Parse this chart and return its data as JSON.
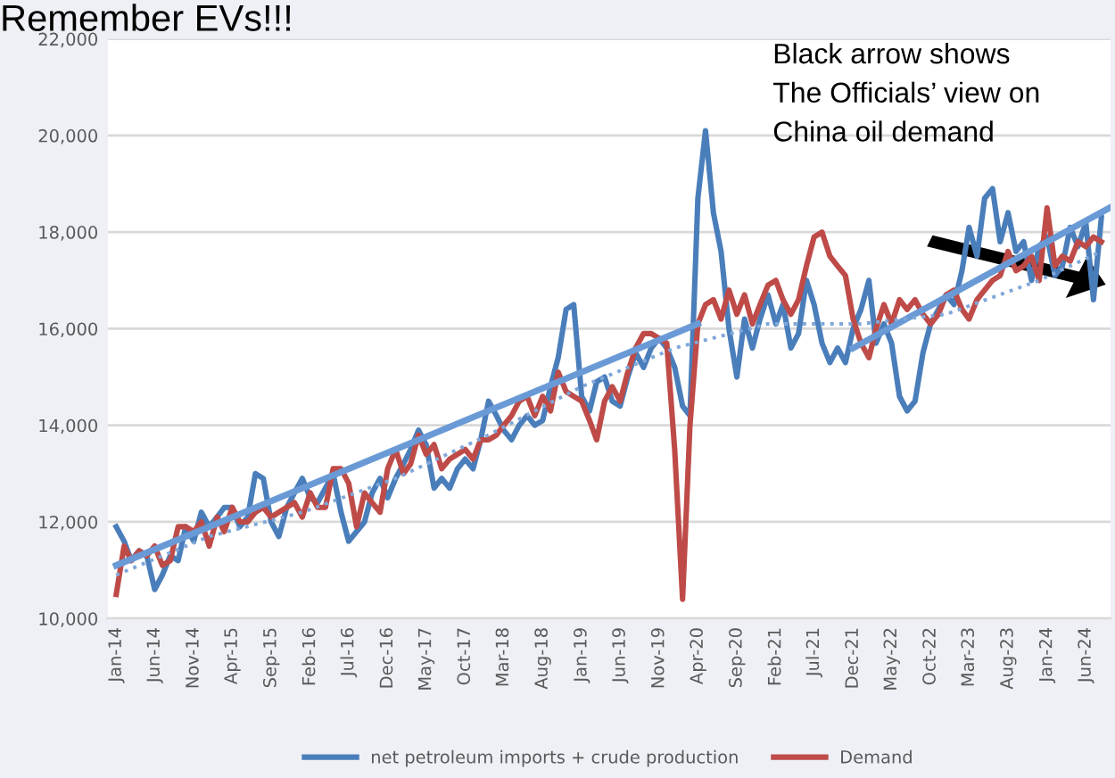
{
  "chart_data": {
    "type": "line",
    "title": "Remember EVs!!!",
    "annotations": [
      "Black arrow shows\nThe Officials’ view on\nChina oil demand"
    ],
    "x": [
      "2014-01",
      "2014-02",
      "2014-03",
      "2014-04",
      "2014-05",
      "2014-06",
      "2014-07",
      "2014-08",
      "2014-09",
      "2014-10",
      "2014-11",
      "2014-12",
      "2015-01",
      "2015-02",
      "2015-03",
      "2015-04",
      "2015-05",
      "2015-06",
      "2015-07",
      "2015-08",
      "2015-09",
      "2015-10",
      "2015-11",
      "2015-12",
      "2016-01",
      "2016-02",
      "2016-03",
      "2016-04",
      "2016-05",
      "2016-06",
      "2016-07",
      "2016-08",
      "2016-09",
      "2016-10",
      "2016-11",
      "2016-12",
      "2017-01",
      "2017-02",
      "2017-03",
      "2017-04",
      "2017-05",
      "2017-06",
      "2017-07",
      "2017-08",
      "2017-09",
      "2017-10",
      "2017-11",
      "2017-12",
      "2018-01",
      "2018-02",
      "2018-03",
      "2018-04",
      "2018-05",
      "2018-06",
      "2018-07",
      "2018-08",
      "2018-09",
      "2018-10",
      "2018-11",
      "2018-12",
      "2019-01",
      "2019-02",
      "2019-03",
      "2019-04",
      "2019-05",
      "2019-06",
      "2019-07",
      "2019-08",
      "2019-09",
      "2019-10",
      "2019-11",
      "2019-12",
      "2020-01",
      "2020-02",
      "2020-03",
      "2020-04",
      "2020-05",
      "2020-06",
      "2020-07",
      "2020-08",
      "2020-09",
      "2020-10",
      "2020-11",
      "2020-12",
      "2021-01",
      "2021-02",
      "2021-03",
      "2021-04",
      "2021-05",
      "2021-06",
      "2021-07",
      "2021-08",
      "2021-09",
      "2021-10",
      "2021-11",
      "2021-12",
      "2022-01",
      "2022-02",
      "2022-03",
      "2022-04",
      "2022-05",
      "2022-06",
      "2022-07",
      "2022-08",
      "2022-09",
      "2022-10",
      "2022-11",
      "2022-12",
      "2023-01",
      "2023-02",
      "2023-03",
      "2023-04",
      "2023-05",
      "2023-06",
      "2023-07",
      "2023-08",
      "2023-09",
      "2023-10",
      "2023-11",
      "2023-12",
      "2024-01",
      "2024-02",
      "2024-03",
      "2024-04",
      "2024-05",
      "2024-06",
      "2024-07",
      "2024-08"
    ],
    "series": [
      {
        "name": "net petroleum imports + crude production",
        "color": "#4a7ebb",
        "values": [
          11900,
          11600,
          11200,
          11400,
          11300,
          10600,
          10900,
          11300,
          11200,
          11900,
          11600,
          12200,
          11900,
          12100,
          12300,
          12300,
          11900,
          12100,
          13000,
          12900,
          12000,
          11700,
          12300,
          12600,
          12900,
          12500,
          12400,
          12700,
          13000,
          12200,
          11600,
          11800,
          12000,
          12600,
          12900,
          12500,
          12900,
          13200,
          13500,
          13900,
          13600,
          12700,
          12900,
          12700,
          13100,
          13300,
          13100,
          13700,
          14500,
          14200,
          13900,
          13700,
          14000,
          14200,
          14000,
          14100,
          14800,
          15400,
          16400,
          16500,
          14600,
          14300,
          14900,
          15000,
          14500,
          14400,
          15000,
          15500,
          15200,
          15600,
          15800,
          15600,
          15200,
          14400,
          14200,
          18700,
          20100,
          18400,
          17600,
          16000,
          15000,
          16200,
          15600,
          16200,
          16700,
          16100,
          16500,
          15600,
          15900,
          17000,
          16500,
          15700,
          15300,
          15600,
          15300,
          16000,
          16400,
          17000,
          15700,
          16100,
          15700,
          14600,
          14300,
          14500,
          15500,
          16100,
          16400,
          16700,
          16500,
          17200,
          18100,
          17500,
          18700,
          18900,
          17800,
          18400,
          17600,
          17800,
          17000,
          17700,
          17900,
          17100,
          17300,
          18100,
          17700,
          18200,
          16600,
          18300
        ]
      },
      {
        "name": "Demand",
        "color": "#be4b48",
        "values": [
          10500,
          11500,
          11200,
          11400,
          11300,
          11500,
          11100,
          11200,
          11900,
          11900,
          11800,
          12000,
          11500,
          12100,
          11800,
          12300,
          12000,
          12000,
          12200,
          12300,
          12100,
          12200,
          12300,
          12400,
          12100,
          12600,
          12300,
          12300,
          13100,
          13100,
          12800,
          11900,
          12600,
          12400,
          12200,
          13100,
          13500,
          13000,
          13200,
          13800,
          13400,
          13600,
          13100,
          13300,
          13400,
          13500,
          13300,
          13700,
          13700,
          13800,
          14000,
          14200,
          14500,
          14600,
          14200,
          14600,
          14300,
          15100,
          14700,
          14600,
          14500,
          14100,
          13700,
          14500,
          14800,
          14500,
          15100,
          15600,
          15900,
          15900,
          15800,
          15700,
          13500,
          10400,
          14000,
          16100,
          16500,
          16600,
          16200,
          16800,
          16300,
          16700,
          16100,
          16500,
          16900,
          17000,
          16600,
          16300,
          16600,
          17300,
          17900,
          18000,
          17500,
          17300,
          17100,
          16200,
          15700,
          15400,
          16000,
          16500,
          16100,
          16600,
          16400,
          16600,
          16300,
          16100,
          16300,
          16700,
          16800,
          16400,
          16200,
          16600,
          16800,
          17000,
          17100,
          17600,
          17200,
          17300,
          17500,
          17000,
          18500,
          17300,
          17500,
          17400,
          17800,
          17700,
          17900,
          17800
        ]
      },
      {
        "color": "#6a9ad6",
        "x": [
          "2014-01",
          "2020-04"
        ],
        "values": [
          11100,
          16100
        ]
      },
      {
        "color": "#6a9ad6",
        "x": [
          "2021-12",
          "2024-09"
        ],
        "values": [
          15600,
          18500
        ]
      },
      {
        "color": "#7fa7d9",
        "line_style": "dotted",
        "x": [
          "2014-01",
          "2015-01",
          "2016-01",
          "2017-01",
          "2018-01",
          "2019-01",
          "2020-01",
          "2021-01",
          "2022-01",
          "2022-12",
          "2023-12",
          "2024-08"
        ],
        "values": [
          10900,
          11700,
          12200,
          12900,
          13800,
          14800,
          15600,
          16100,
          16100,
          16300,
          17000,
          17600
        ]
      }
    ],
    "xlim": [
      "2013-12-10",
      "2024-09-20"
    ],
    "xticks": [
      {
        "value": "2014-01",
        "label": "Jan-14"
      },
      {
        "value": "2014-06",
        "label": "Jun-14"
      },
      {
        "value": "2014-11",
        "label": "Nov-14"
      },
      {
        "value": "2015-04",
        "label": "Apr-15"
      },
      {
        "value": "2015-09",
        "label": "Sep-15"
      },
      {
        "value": "2016-02",
        "label": "Feb-16"
      },
      {
        "value": "2016-07",
        "label": "Jul-16"
      },
      {
        "value": "2016-12",
        "label": "Dec-16"
      },
      {
        "value": "2017-05",
        "label": "May-17"
      },
      {
        "value": "2017-10",
        "label": "Oct-17"
      },
      {
        "value": "2018-03",
        "label": "Mar-18"
      },
      {
        "value": "2018-08",
        "label": "Aug-18"
      },
      {
        "value": "2019-01",
        "label": "Jan-19"
      },
      {
        "value": "2019-06",
        "label": "Jun-19"
      },
      {
        "value": "2019-11",
        "label": "Nov-19"
      },
      {
        "value": "2020-04",
        "label": "Apr-20"
      },
      {
        "value": "2020-09",
        "label": "Sep-20"
      },
      {
        "value": "2021-02",
        "label": "Feb-21"
      },
      {
        "value": "2021-07",
        "label": "Jul-21"
      },
      {
        "value": "2021-12",
        "label": "Dec-21"
      },
      {
        "value": "2022-05",
        "label": "May-22"
      },
      {
        "value": "2022-10",
        "label": "Oct-22"
      },
      {
        "value": "2023-03",
        "label": "Mar-23"
      },
      {
        "value": "2023-08",
        "label": "Aug-23"
      },
      {
        "value": "2024-01",
        "label": "Jan-24"
      },
      {
        "value": "2024-06",
        "label": "Jun-24"
      }
    ],
    "ylim": [
      10000,
      22000
    ],
    "yticks": [
      {
        "value": 10000,
        "label": "10,000"
      },
      {
        "value": 12000,
        "label": "12,000"
      },
      {
        "value": 14000,
        "label": "14,000"
      },
      {
        "value": 16000,
        "label": "16,000"
      },
      {
        "value": 18000,
        "label": "18,000"
      },
      {
        "value": 20000,
        "label": "20,000"
      },
      {
        "value": 22000,
        "label": "22,000"
      }
    ],
    "grid": "y",
    "legend": "bottom",
    "line_style": "solid",
    "marker": "none"
  }
}
